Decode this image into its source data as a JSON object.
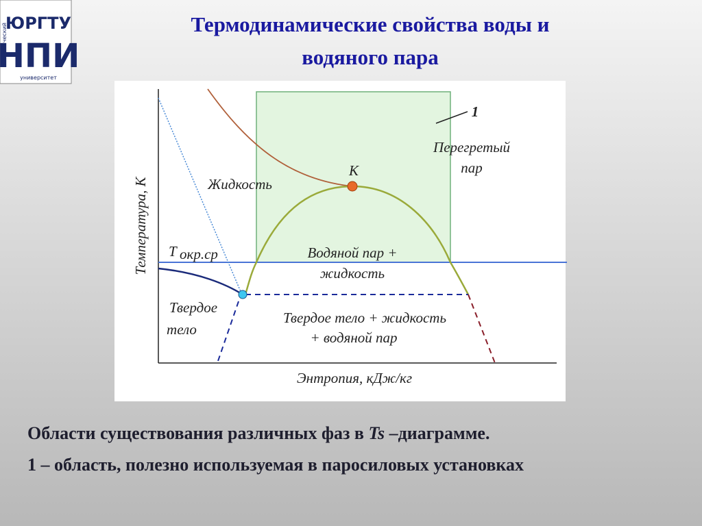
{
  "logo": {
    "top": "ЮРГТУ",
    "main": "НПИ",
    "small_left": "технический",
    "small_bottom": "университет"
  },
  "title": {
    "lines": [
      "Термодинамические свойства воды и",
      "водяного пара"
    ]
  },
  "diagram": {
    "y_label": "Температура, К",
    "x_label": "Энтропия, кДж/кг",
    "marker_1": "1",
    "superheated": [
      "Перегретый",
      "пар"
    ],
    "critical": "К",
    "liquid": "Жидкость",
    "t_ambient": {
      "symbol": "Т",
      "subscript": "окр.ср"
    },
    "vapor_liquid": [
      "Водяной пар +",
      "жидкость"
    ],
    "solid": [
      "Твердое",
      "тело"
    ],
    "triple": [
      "Твердое тело + жидкость",
      "+ водяной пар"
    ]
  },
  "caption": {
    "line1": [
      "Области существования различных фаз в ",
      "Ts",
      " –диаграмме."
    ],
    "line2": "1 – область, полезно используемая в паросиловых установках"
  }
}
